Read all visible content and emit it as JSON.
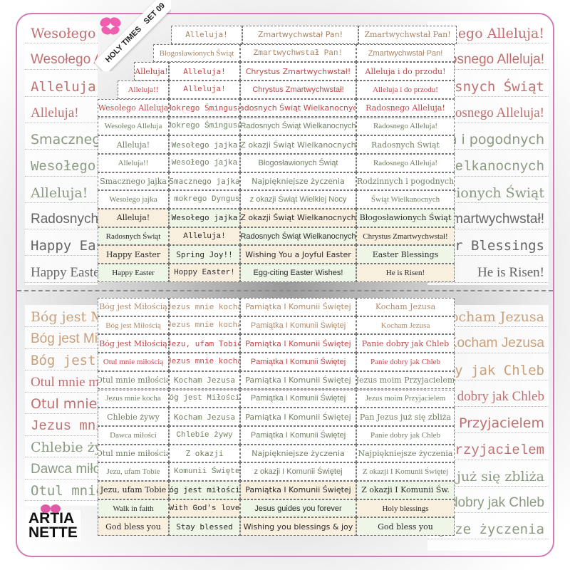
{
  "badge": {
    "line1": "HOLY TIMES",
    "line2": "SET 09"
  },
  "logo": {
    "line1": "ARTIA",
    "line2": "NETTE",
    "accent": "#e05aa8"
  },
  "colors": {
    "frame": "#d47ab8",
    "cream": "#f8efdf",
    "mint": "#eef6e8"
  },
  "background_sheets": {
    "top_left": [
      "Wesołego Alleluja",
      "Wesołego Alleluja",
      "Alleluja!",
      "Alleluja!",
      "Smacznego jajka",
      "Wesołego jajka",
      "Alleluja!",
      "Radosnych Świąt",
      "Happy Easter",
      "Happy Easter"
    ],
    "top_right": [
      "Radosnego Alleluja!",
      "Radosnego Alleluja!",
      "Radosnych Świąt",
      "Radosnego Alleluja!",
      "Rodzinnych i pogodnych",
      "Świąt Wielkanocnych",
      "Błogosławionych Świąt",
      "Chrystus Zmartwychwstał!",
      "Easter Blessings",
      "He is Risen!"
    ],
    "bottom_left": [
      "Bóg jest Miłością",
      "Bóg jest Miłością",
      "Bóg jest Miłością",
      "Otul mnie miłością",
      "Otul mnie miłością",
      "Jezus mnie kocha",
      "Chlebie żywy",
      "Dawca miłości",
      "Otul mnie miłością"
    ],
    "bottom_right": [
      "Kocham Jezusa",
      "Kocham Jezusa",
      "Panie dobry jak Chleb",
      "Panie dobry jak Chleb",
      "Jezus moim Przyjacielem",
      "Jezus moim Przyjacielem",
      "Pan Jezus już się zbliża",
      "Panie dobry jak Chleb",
      "Najpiękniejsze życzenia"
    ]
  },
  "easter_sheet": [
    [
      "",
      "Alleluja!",
      "Zmartwychwstał Pan!",
      "Zmartwychwstał Pan!"
    ],
    [
      "Błogosławionych Świąt",
      "Zmartwychwstał Pan!",
      "Zmartwychwstał Pan!"
    ],
    [
      "Alleluja!",
      "Alleluja!",
      "Chrystus Zmartwychwstał!",
      "Alleluja i do przodu!"
    ],
    [
      "Alleluja!!",
      "Alleluja!",
      "Chrystus Zmartwychwstał!",
      "Alleluja i do przodu!"
    ],
    [
      "Wesołego Alleluja",
      "Mokrego Śmingusa",
      "Radosnych Świąt Wielkanocnych",
      "Radosnego Alleluja!"
    ],
    [
      "Wesołego Alleluja",
      "Mokrego Śmingusa",
      "Radosnych Świąt Wielkanocnych",
      "Radosnego Alleluja!"
    ],
    [
      "Alleluja!",
      "Wesołego jajka",
      "Z okazji Świąt Wielkanocnych",
      "Radosnych Świąt"
    ],
    [
      "Alleluja!!",
      "Wesołego jajka",
      "Błogosławionych Świąt",
      "Radosnego Alleluja!"
    ],
    [
      "Smacznego jajka",
      "Smacznego jajka",
      "Najpiękniejsze życzenia",
      "Rodzinnych i pogodnych"
    ],
    [
      "Wesołego jajka",
      "i mokrego Dyngusa",
      "z okazji Świąt Wielkiej Nocy",
      "Świąt Wielkanocnych"
    ],
    [
      "Alleluja!",
      "Wesołego jajka",
      "Z okazji Świąt Wielkanocnych",
      "Błogosławionych Świąt"
    ],
    [
      "Radosnych Świąt",
      "Alleluja!",
      "Radosnych Świąt Wielkanocnych",
      "Chrystus Zmartwychwstał!"
    ],
    [
      "Happy Easter",
      "Spring Joy!!",
      "Wishing You a Joyful Easter",
      "Easter Blessings"
    ],
    [
      "Happy Easter",
      "Hoppy Easter!",
      "Egg-citing Easter Wishes!",
      "He is Risen!"
    ]
  ],
  "communion_sheet": [
    [
      "Bóg jest Miłością",
      "Jezus mnie kocha",
      "Pamiątka I Komunii Świętej",
      "Kocham Jezusa"
    ],
    [
      "Bóg jest Miłością",
      "Jezus mnie kocha",
      "Pamiątka I Komunii Świętej",
      "Kocham Jezusa"
    ],
    [
      "Bóg jest Miłością",
      "Jezu, ufam Tobie",
      "Pamiątka I Komunii Świętej",
      "Panie dobry jak Chleb"
    ],
    [
      "Otul mnie miłością",
      "Jezus mnie kocha",
      "Pamiątka I Komunii Świętej",
      "Panie dobry jak Chleb"
    ],
    [
      "Otul mnie miłością",
      "Kocham Jezusa",
      "Pamiątka I Komunii Świętej",
      "Jezus moim Przyjacielem"
    ],
    [
      "Jezus mnie kocha",
      "Bóg jest Miłością",
      "Pamiątka I Komunii Świętej",
      "Jezus moim Przyjacielem"
    ],
    [
      "Chlebie żywy",
      "Kocham Jezusa",
      "Pamiątka I Komunii Świętej",
      "Pan Jezus już się zbliża"
    ],
    [
      "Dawca miłości",
      "Chlebie żywy",
      "Pamiątka I Komunii Świętej",
      "Panie dobry jak Chleb"
    ],
    [
      "Otul mnie miłością",
      "Z okazji",
      "Najpiękniejsze życzenia",
      "Najpiękniejsze życzenia"
    ],
    [
      "Jezu, ufam Tobie",
      "I Komunii Świętej",
      "z okazji I Komunii Świętej",
      "Z okazji I Komunii Świętej"
    ],
    [
      "Jezu, ufam Tobie",
      "Bóg jest miłością",
      "Pamiątka I Komunii Świętej",
      "Z okazji I Komunii Św."
    ],
    [
      "Walk in faith",
      "With God's love",
      "Jesus guides you forever",
      "Holy blessings"
    ],
    [
      "God bless you",
      "Stay blessed",
      "Wishing you blessings & joy",
      "God bless you"
    ]
  ]
}
